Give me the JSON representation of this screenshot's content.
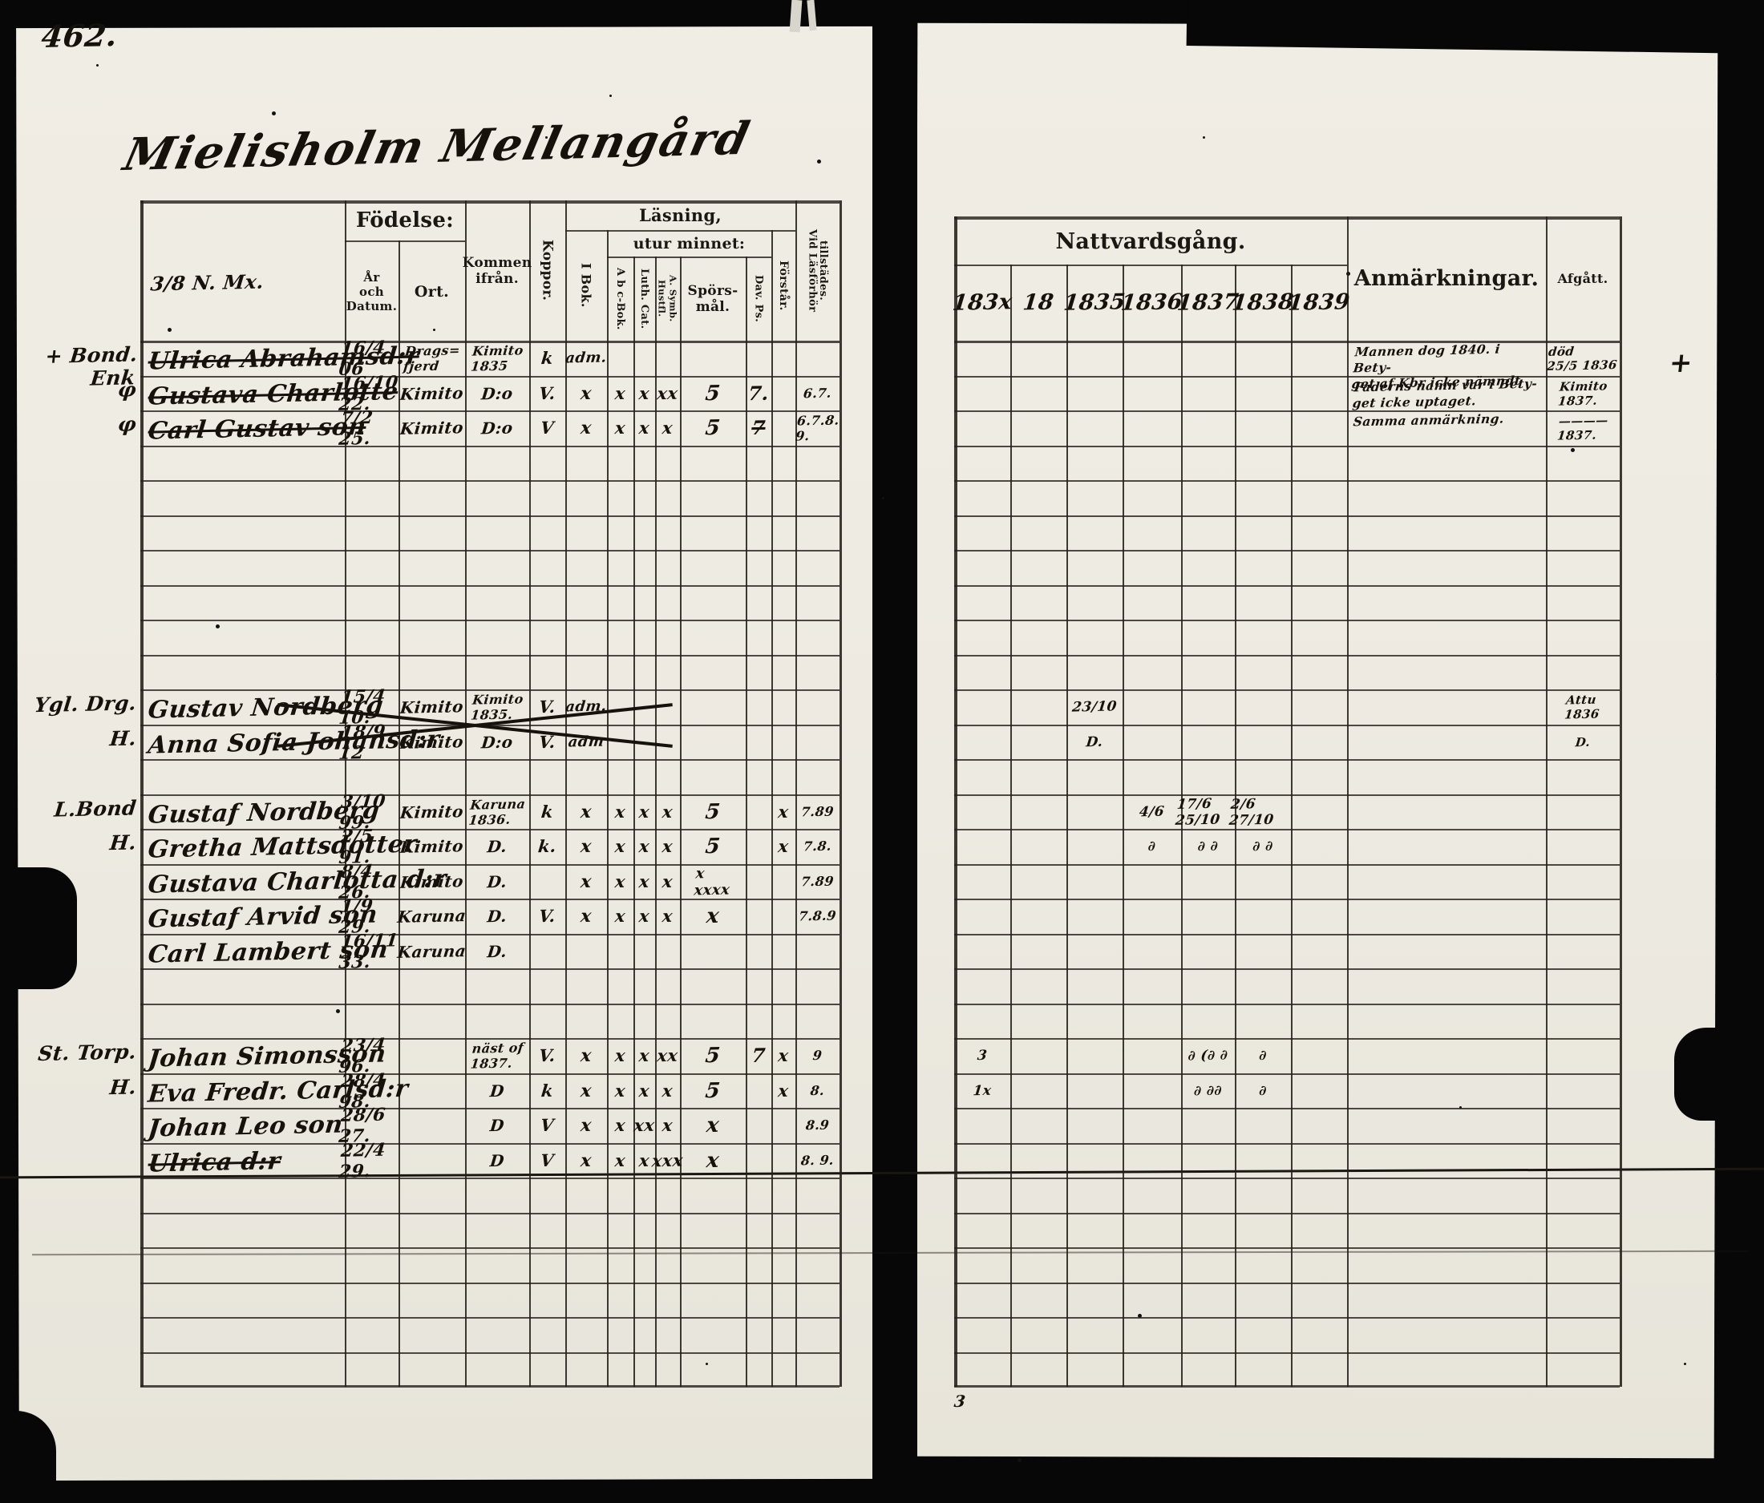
{
  "page": {
    "number": "462.",
    "title": "Mielisholm Mellangård",
    "stray_mark": "3",
    "cross_mark": "+"
  },
  "left_table": {
    "header": {
      "name_note": "3/8 N. Mx.",
      "fodelse": "Födelse:",
      "ar_datum": "År\noch\nDatum.",
      "ort": "Ort.",
      "kommen": "Kommen\nifrån.",
      "koppor": "Koppor.",
      "lasning": "Läsning,",
      "utur_minnet": "utur minnet:",
      "i_bok": "I Bok.",
      "abc_bok": "A b c-Bok.",
      "luth_cat": "Luth. Cat.",
      "a_symb": "A. Symb. Hustfl.",
      "sporsmal": "Spörs-\nmål.",
      "dav_ps": "Dav. Ps.",
      "forstar": "Förstår.",
      "vid_lasforhor": "Vid Läsförhör\ntillstädes."
    }
  },
  "right_table": {
    "header": {
      "nattvardsgang": "Nattvardsgång.",
      "years": [
        "183x",
        "18",
        "1835",
        "1836",
        "1837",
        "1838",
        "1839"
      ],
      "anmarkningar": "Anmärkningar.",
      "afgatt": "Afgått."
    }
  },
  "rows": [
    {
      "i": 0,
      "margin": "+ Bond. Enk",
      "name": "Ulrica Abrahamsd:r",
      "struck": true,
      "datum": "16/4 06",
      "ort": "Drags=\nfjerd",
      "kommen": "Kimito\n1835",
      "koppor": "k",
      "ibok": "adm.",
      "anm": "Mannen dog 1840. i Bety-\nget af Kbr icke nämndt",
      "afgatt": "död\n25/5 1836",
      "cross": true
    },
    {
      "i": 1,
      "margin": "φ",
      "name": "Gustava Charlotte",
      "struck": true,
      "datum": "16/10 22.",
      "ort": "Kimito",
      "kommen": "D:o",
      "koppor": "V.",
      "ibok": "x",
      "abc": "x",
      "luth": "x",
      "symb": "xx",
      "spors": "5",
      "davps": "7.",
      "vidlas": "6.7.",
      "anm": "Faderns namn var i Bety-\nget icke uptaget.",
      "afgatt": "Kimito\n1837."
    },
    {
      "i": 2,
      "margin": "φ",
      "name": "Carl Gustav son",
      "struck": true,
      "datum": "7/2 25.",
      "ort": "Kimito",
      "kommen": "D:o",
      "koppor": "V",
      "ibok": "x",
      "abc": "x",
      "luth": "x",
      "symb": "x",
      "spors": "5",
      "davps": "7",
      "davps_struck": true,
      "vidlas": "6.7.8.\n9.",
      "anm": "Samma anmärkning.",
      "afgatt": "————\n1837."
    },
    {
      "i": 10,
      "margin": "Ygl. Drg.",
      "name": "Gustav Nordberg",
      "datum": "15/4 10.",
      "ort": "Kimito",
      "kommen": "Kimito\n1835.",
      "koppor": "V.",
      "ibok": "adm.",
      "natt": {
        "y2": "23/10"
      },
      "afgatt": "Attu\n1836"
    },
    {
      "i": 11,
      "margin": "H.",
      "name": "Anna Sofia Johansd:r",
      "datum": "18/9 12",
      "ort": "Kimito",
      "kommen": "D:o",
      "koppor": "V.",
      "ibok": "adm",
      "natt": {
        "y2": "D."
      },
      "afgatt": "D."
    },
    {
      "i": 13,
      "margin": "L.Bond",
      "name": "Gustaf Nordberg",
      "datum": "3/10 99.",
      "ort": "Kimito",
      "kommen": "Karuna\n1836.",
      "koppor": "k",
      "ibok": "x",
      "abc": "x",
      "luth": "x",
      "symb": "x",
      "spors": "5",
      "forstar": "x",
      "vidlas": "7.89",
      "natt": {
        "y3": "4/6",
        "y4": "17/6 25/10",
        "y5": "2/6 27/10"
      }
    },
    {
      "i": 14,
      "margin": "H.",
      "name": "Gretha Mattsdotter",
      "datum": "2/5 91.",
      "ort": "Kimito",
      "kommen": "D.",
      "koppor": "k.",
      "ibok": "x",
      "abc": "x",
      "luth": "x",
      "symb": "x",
      "spors": "5",
      "forstar": "x",
      "vidlas": "7.8.",
      "natt": {
        "y3": "∂",
        "y4": "∂ ∂",
        "y5": "∂ ∂"
      }
    },
    {
      "i": 15,
      "name": "Gustava Charlotta d:r",
      "datum": "8/4 26.",
      "ort": "Kimito",
      "kommen": "D.",
      "ibok": "x",
      "abc": "x",
      "luth": "x",
      "symb": "x",
      "spors": "x\nxxxx",
      "vidlas": "7.89"
    },
    {
      "i": 16,
      "name": "Gustaf Arvid  son",
      "datum": "1/9 29.",
      "ort": "Karuna",
      "kommen": "D.",
      "koppor": "V.",
      "ibok": "x",
      "abc": "x",
      "luth": "x",
      "symb": "x",
      "spors": "x",
      "vidlas": "7.8.9"
    },
    {
      "i": 17,
      "name": "Carl Lambert  son",
      "datum": "16/11 33.",
      "ort": "Karuna",
      "kommen": "D."
    },
    {
      "i": 20,
      "margin": "St. Torp.",
      "name": "Johan Simonsson",
      "datum": "23/4 96.",
      "kommen": "näst of\n1837.",
      "koppor": "V.",
      "ibok": "x",
      "abc": "x",
      "luth": "x",
      "symb": "xx",
      "spors": "5",
      "davps": "7",
      "forstar": "x",
      "vidlas": "9",
      "natt": {
        "y0": "3",
        "y4": "∂ (∂ ∂",
        "y5": "∂"
      }
    },
    {
      "i": 21,
      "margin": "H.",
      "name": "Eva Fredr. Carlsd:r",
      "datum": "28/4 98.",
      "kommen": "D",
      "koppor": "k",
      "ibok": "x",
      "abc": "x",
      "luth": "x",
      "symb": "x",
      "spors": "5",
      "forstar": "x",
      "vidlas": "8.",
      "natt": {
        "y0": "1x",
        "y4": "∂ ∂∂",
        "y5": "∂"
      }
    },
    {
      "i": 22,
      "name": "Johan Leo  son",
      "datum": "28/6 27.",
      "kommen": "D",
      "koppor": "V",
      "ibok": "x",
      "abc": "x",
      "luth": "xx",
      "symb": "x",
      "spors": "x",
      "vidlas": "8.9"
    },
    {
      "i": 23,
      "name": "Ulrica d:r",
      "struck": true,
      "datum": "22/4 29.",
      "kommen": "D",
      "koppor": "V",
      "ibok": "x",
      "abc": "x",
      "luth": "x",
      "symb": "xxx",
      "spors": "x",
      "vidlas": "8. 9."
    }
  ]
}
